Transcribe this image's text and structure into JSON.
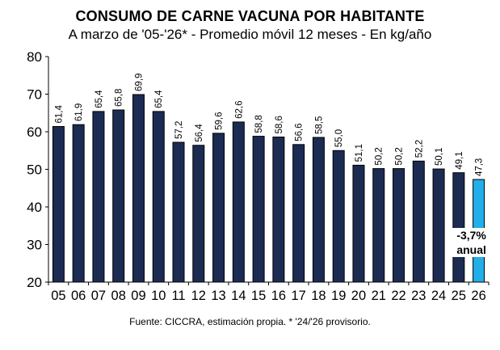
{
  "title": "CONSUMO DE CARNE VACUNA POR HABITANTE",
  "subtitle": "A marzo de '05-'26* - Promedio móvil 12 meses -  En kg/año",
  "source": "Fuente: CICCRA, estimación propia. * '24/'26 provisorio.",
  "colors": {
    "bar": "#1b2b52",
    "highlight": "#22aee8",
    "outline": "#000000"
  },
  "chart_data": {
    "type": "bar",
    "categories": [
      "05",
      "06",
      "07",
      "08",
      "09",
      "10",
      "11",
      "12",
      "13",
      "14",
      "15",
      "16",
      "17",
      "18",
      "19",
      "20",
      "21",
      "22",
      "23",
      "24",
      "25",
      "26"
    ],
    "values": [
      61.4,
      61.9,
      65.4,
      65.8,
      69.9,
      65.4,
      57.2,
      56.4,
      59.6,
      62.6,
      58.8,
      58.6,
      56.6,
      58.5,
      55.0,
      51.1,
      50.2,
      50.2,
      52.2,
      50.1,
      49.1,
      47.3
    ],
    "value_labels": [
      "61,4",
      "61,9",
      "65,4",
      "65,8",
      "69,9",
      "65,4",
      "57,2",
      "56,4",
      "59,6",
      "62,6",
      "58,8",
      "58,6",
      "56,6",
      "58,5",
      "55,0",
      "51,1",
      "50,2",
      "50,2",
      "52,2",
      "50,1",
      "49,1",
      "47,3"
    ],
    "highlight_index": 21,
    "ylim": [
      20,
      80
    ],
    "yticks": [
      "20",
      "30",
      "40",
      "50",
      "60",
      "70",
      "80"
    ],
    "grid": false,
    "annotation": {
      "line1": "-3,7%",
      "line2": "anual"
    }
  }
}
